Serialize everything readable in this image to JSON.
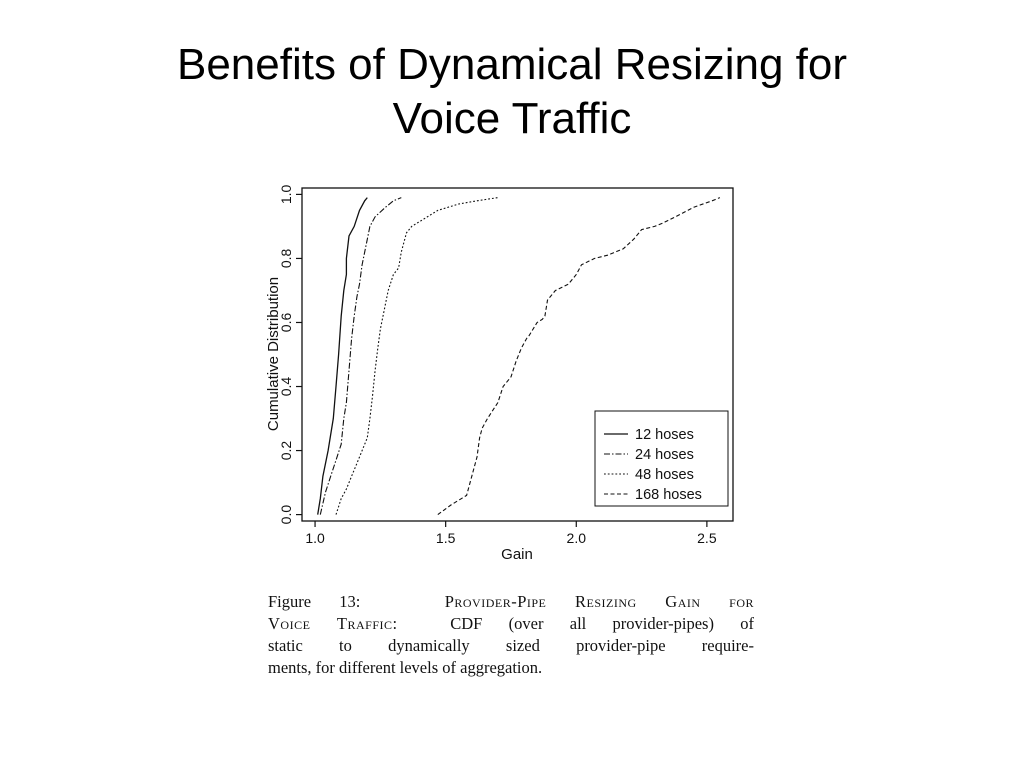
{
  "slide": {
    "title_line1": "Benefits of Dynamical Resizing for",
    "title_line2": "Voice Traffic"
  },
  "caption": {
    "figure_label": "Figure 13:",
    "figure_title_part1": "Provider-Pipe Resizing Gain for",
    "figure_title_part2": "Voice Traffic:",
    "line1_rest": "CDF (over all provider-pipes) of",
    "line2": "static to dynamically sized provider-pipe require-",
    "line3": "ments, for different levels of aggregation."
  },
  "chart_data": {
    "type": "line",
    "xlabel": "Gain",
    "ylabel": "Cumulative Distribution",
    "xlim": [
      0.95,
      2.6
    ],
    "ylim": [
      -0.02,
      1.02
    ],
    "x_ticks": [
      1.0,
      1.5,
      2.0,
      2.5
    ],
    "x_tick_labels": [
      "1.0",
      "1.5",
      "2.0",
      "2.5"
    ],
    "y_ticks": [
      0.0,
      0.2,
      0.4,
      0.6,
      0.8,
      1.0
    ],
    "y_tick_labels": [
      "0.0",
      "0.2",
      "0.4",
      "0.6",
      "0.8",
      "1.0"
    ],
    "grid": false,
    "legend_position": "bottom-right",
    "series": [
      {
        "name": "12 hoses",
        "dash": "solid",
        "x": [
          1.01,
          1.02,
          1.03,
          1.05,
          1.06,
          1.07,
          1.08,
          1.09,
          1.1,
          1.11,
          1.12,
          1.12,
          1.13,
          1.15,
          1.17,
          1.19,
          1.2
        ],
        "y": [
          0.0,
          0.05,
          0.12,
          0.2,
          0.25,
          0.3,
          0.4,
          0.5,
          0.62,
          0.7,
          0.75,
          0.8,
          0.87,
          0.9,
          0.95,
          0.98,
          0.99
        ]
      },
      {
        "name": "24 hoses",
        "dash": "dash-dot",
        "x": [
          1.02,
          1.04,
          1.06,
          1.08,
          1.1,
          1.11,
          1.12,
          1.13,
          1.14,
          1.15,
          1.16,
          1.17,
          1.18,
          1.19,
          1.21,
          1.23,
          1.27,
          1.3,
          1.33
        ],
        "y": [
          0.0,
          0.07,
          0.12,
          0.17,
          0.22,
          0.3,
          0.35,
          0.45,
          0.55,
          0.62,
          0.68,
          0.72,
          0.78,
          0.82,
          0.9,
          0.93,
          0.96,
          0.98,
          0.99
        ]
      },
      {
        "name": "48 hoses",
        "dash": "dotted",
        "x": [
          1.08,
          1.1,
          1.12,
          1.14,
          1.16,
          1.18,
          1.2,
          1.21,
          1.22,
          1.23,
          1.24,
          1.25,
          1.26,
          1.28,
          1.3,
          1.32,
          1.33,
          1.34,
          1.35,
          1.36,
          1.37,
          1.41,
          1.47,
          1.55,
          1.62,
          1.7
        ],
        "y": [
          0.0,
          0.05,
          0.08,
          0.12,
          0.16,
          0.2,
          0.24,
          0.3,
          0.37,
          0.45,
          0.52,
          0.58,
          0.62,
          0.7,
          0.75,
          0.77,
          0.82,
          0.85,
          0.88,
          0.89,
          0.9,
          0.92,
          0.95,
          0.97,
          0.98,
          0.99
        ]
      },
      {
        "name": "168 hoses",
        "dash": "dashed",
        "x": [
          1.47,
          1.52,
          1.58,
          1.6,
          1.62,
          1.63,
          1.64,
          1.66,
          1.7,
          1.72,
          1.75,
          1.77,
          1.79,
          1.81,
          1.82,
          1.85,
          1.87,
          1.88,
          1.89,
          1.92,
          1.97,
          2.0,
          2.02,
          2.07,
          2.12,
          2.18,
          2.22,
          2.24,
          2.25,
          2.3,
          2.33,
          2.38,
          2.45,
          2.52,
          2.55
        ],
        "y": [
          0.0,
          0.03,
          0.06,
          0.12,
          0.18,
          0.24,
          0.27,
          0.3,
          0.35,
          0.4,
          0.43,
          0.48,
          0.52,
          0.55,
          0.56,
          0.6,
          0.61,
          0.62,
          0.67,
          0.7,
          0.72,
          0.75,
          0.78,
          0.8,
          0.81,
          0.83,
          0.86,
          0.88,
          0.89,
          0.9,
          0.91,
          0.93,
          0.96,
          0.98,
          0.99
        ]
      }
    ],
    "colors": {
      "line": "#111111",
      "frame": "#111111",
      "background": "#ffffff"
    }
  }
}
